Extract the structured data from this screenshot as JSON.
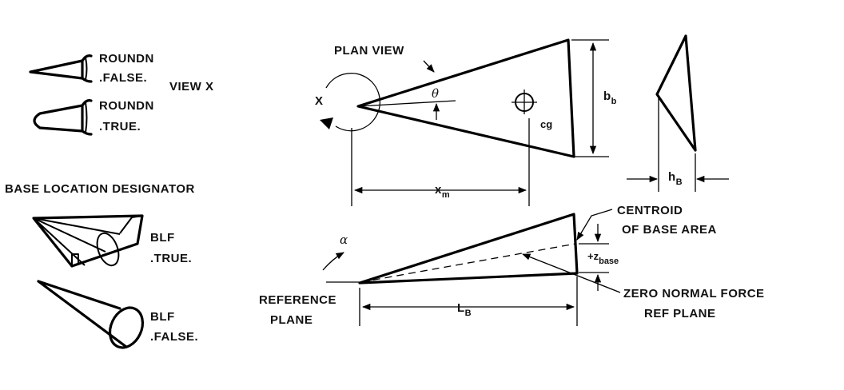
{
  "roundn_false": {
    "line1": "ROUNDN",
    "line2": ".FALSE."
  },
  "roundn_true": {
    "line1": "ROUNDN",
    "line2": ".TRUE."
  },
  "view_x": "VIEW X",
  "base_location_designator": "BASE LOCATION DESIGNATOR",
  "blf_true": {
    "line1": "BLF",
    "line2": ".TRUE."
  },
  "blf_false": {
    "line1": "BLF",
    "line2": ".FALSE."
  },
  "plan_view": "PLAN VIEW",
  "x_label": "X",
  "theta": "θ",
  "cg": "cg",
  "b_b": {
    "main": "b",
    "sub": "b"
  },
  "x_m": {
    "main": "x",
    "sub": "m"
  },
  "h_b": {
    "main": "h",
    "sub": "B"
  },
  "centroid": {
    "line1": "CENTROID",
    "line2": "OF BASE AREA"
  },
  "z_base": {
    "main": "+z",
    "sub": "base"
  },
  "alpha": "α",
  "reference_plane": {
    "line1": "REFERENCE",
    "line2": "PLANE"
  },
  "l_b": {
    "main": "L",
    "sub": "B"
  },
  "zero_normal_force": {
    "line1": "ZERO NORMAL FORCE",
    "line2": "REF PLANE"
  }
}
